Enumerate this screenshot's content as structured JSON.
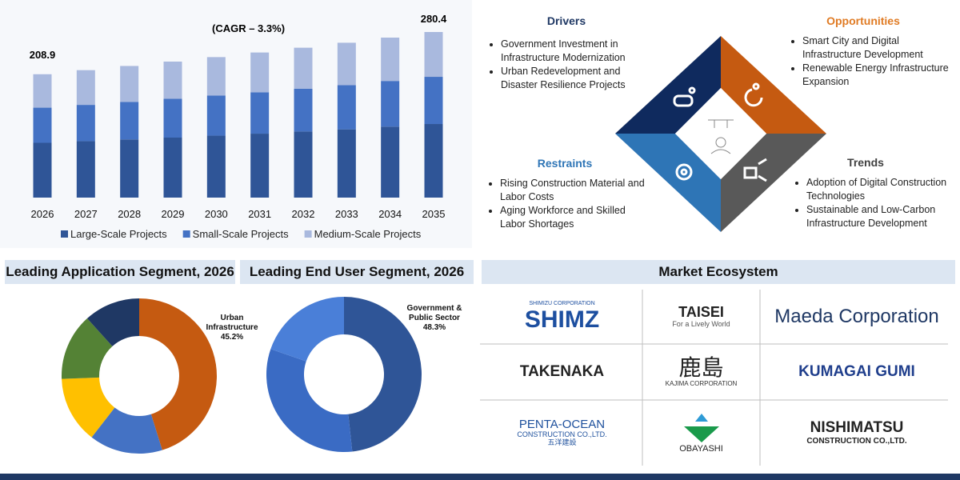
{
  "chart_data": [
    {
      "type": "bar",
      "stacked": true,
      "annotation": "(CAGR – 3.3%)",
      "first_total": 208.9,
      "last_total": 280.4,
      "categories": [
        "2026",
        "2027",
        "2028",
        "2029",
        "2030",
        "2031",
        "2032",
        "2033",
        "2034",
        "2035"
      ],
      "series": [
        {
          "name": "Large-Scale Projects",
          "color": "#2f5597",
          "values": [
            92.8,
            95.6,
            98.5,
            101.6,
            104.9,
            108.3,
            111.9,
            115.6,
            120.2,
            124.6
          ]
        },
        {
          "name": "Small-Scale Projects",
          "color": "#4472c4",
          "values": [
            59.5,
            61.4,
            63.6,
            65.8,
            67.9,
            70.1,
            72.4,
            74.8,
            77.3,
            79.9
          ]
        },
        {
          "name": "Medium-Scale Projects",
          "color": "#a9b9de",
          "values": [
            56.6,
            58.8,
            60.8,
            62.9,
            65.1,
            67.3,
            69.5,
            71.8,
            73.4,
            75.9
          ]
        }
      ]
    },
    {
      "type": "donut",
      "title": "Leading Application Segment, 2026",
      "categories": [
        "Urban Infrastructure",
        null,
        null,
        null,
        null
      ],
      "values": [
        45.2,
        15.3,
        13.9,
        13.9,
        11.7
      ],
      "value_labels": [
        "45.2%",
        null,
        null,
        null,
        null
      ],
      "colors": [
        "#c55a11",
        "#4472c4",
        "#ffc000",
        "#548235",
        "#1f3864"
      ]
    },
    {
      "type": "donut",
      "title": "Leading End User Segment, 2026",
      "categories": [
        "Government & Public Sector",
        null,
        null
      ],
      "values": [
        48.3,
        32.0,
        19.7
      ],
      "value_labels": [
        "48.3%",
        null,
        null
      ],
      "colors": [
        "#2f5597",
        "#3a6bc4",
        "#4a7fd8"
      ]
    }
  ],
  "factors": {
    "drivers": {
      "title": "Drivers",
      "items": [
        "Government Investment in Infrastructure Modernization",
        "Urban Redevelopment and Disaster Resilience Projects"
      ]
    },
    "opportunities": {
      "title": "Opportunities",
      "items": [
        "Smart City and Digital Infrastructure Development",
        "Renewable Energy Infrastructure Expansion"
      ]
    },
    "restraints": {
      "title": "Restraints",
      "items": [
        "Rising Construction Material and Labor Costs",
        "Aging Workforce and Skilled Labor Shortages"
      ]
    },
    "trends": {
      "title": "Trends",
      "items": [
        "Adoption of Digital Construction Technologies",
        "Sustainable and Low-Carbon Infrastructure Development"
      ]
    }
  },
  "ecosystem": {
    "title": "Market Ecosystem",
    "logos": [
      {
        "lines": [
          "SHIMIZU CORPORATION",
          "SHIMZ"
        ]
      },
      {
        "lines": [
          "TAISEI",
          "For a Lively World"
        ]
      },
      {
        "lines": [
          "Maeda Corporation"
        ]
      },
      {
        "lines": [
          "TAKENAKA"
        ]
      },
      {
        "lines": [
          "鹿島",
          "KAJIMA CORPORATION"
        ]
      },
      {
        "lines": [
          "KUMAGAI GUMI"
        ]
      },
      {
        "lines": [
          "PENTA-OCEAN",
          "CONSTRUCTION CO.,LTD.",
          "五洋建設"
        ]
      },
      {
        "lines": [
          "OBAYASHI"
        ]
      },
      {
        "lines": [
          "NISHIMATSU",
          "CONSTRUCTION CO.,LTD."
        ]
      }
    ]
  }
}
